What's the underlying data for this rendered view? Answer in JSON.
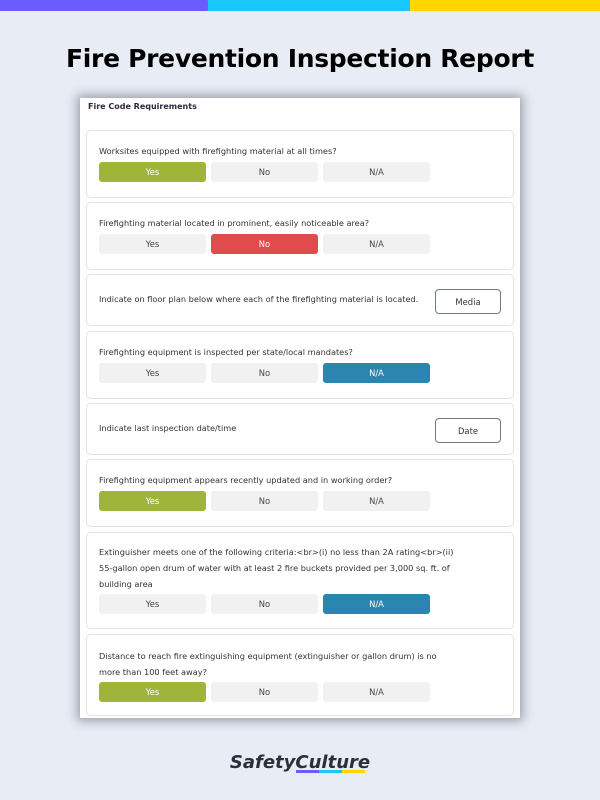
{
  "title": "Fire Prevention Inspection Report",
  "colors": {
    "purple": "#6c5cff",
    "cyan": "#19c8ff",
    "yellow": "#ffd600",
    "yes": "#9fb53a",
    "no": "#e04b4b",
    "na": "#2a86b0"
  },
  "section_title": "Fire Code Requirements",
  "options": [
    "Yes",
    "No",
    "N/A"
  ],
  "items": [
    {
      "question": "Worksites equipped with firefighting material at all times?",
      "selected": "Yes"
    },
    {
      "question": "Firefighting material located in prominent, easily noticeable area?",
      "selected": "No"
    },
    {
      "question": "Indicate on floor plan below where each of the firefighting material is located.",
      "button": "Media"
    },
    {
      "question": "Firefighting equipment is inspected per state/local mandates?",
      "selected": "N/A"
    },
    {
      "question": "Indicate last inspection date/time",
      "button": "Date"
    },
    {
      "question": "Firefighting equipment appears recently updated and in working order?",
      "selected": "Yes"
    },
    {
      "question": "Extinguisher meets one of the following criteria:<br>(i) no less than 2A rating<br>(ii) 55-gallon open drum of water with at least 2 fire buckets provided per 3,000 sq. ft. of building area",
      "selected": "N/A"
    },
    {
      "question": "Distance to reach fire extinguishing equipment (extinguisher or gallon drum) is no more than 100 feet away?",
      "selected": "Yes"
    }
  ],
  "logo": "SafetyCulture"
}
